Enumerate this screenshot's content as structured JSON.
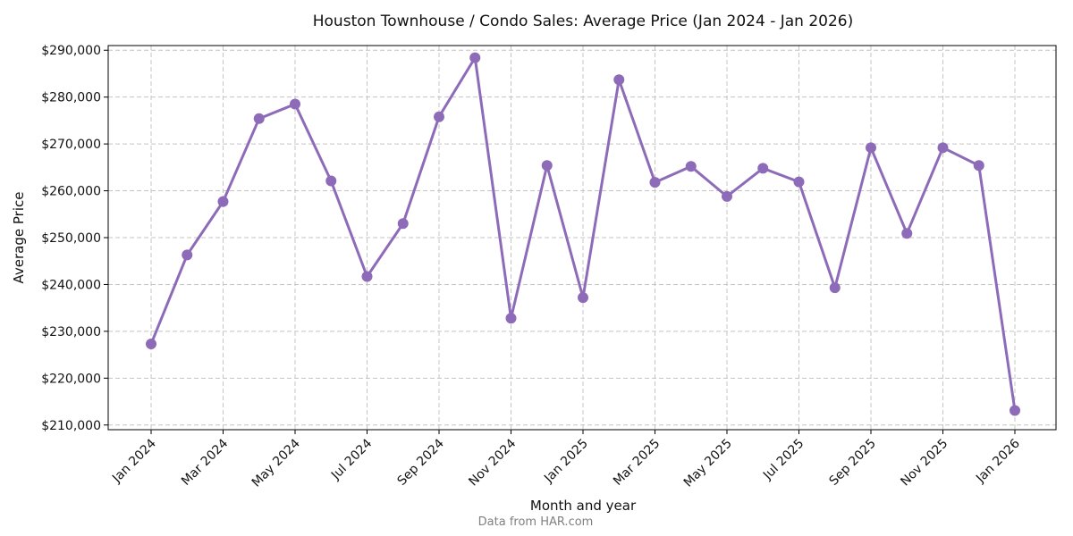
{
  "chart_data": {
    "type": "line",
    "title": "Houston Townhouse / Condo Sales: Average Price (Jan 2024 - Jan 2026)",
    "xlabel": "Month and year",
    "ylabel": "Average Price",
    "source": "Data from HAR.com",
    "ylim": [
      209000,
      291000
    ],
    "grid": true,
    "y_ticks": [
      210000,
      220000,
      230000,
      240000,
      250000,
      260000,
      270000,
      280000,
      290000
    ],
    "y_tick_labels": [
      "$210,000",
      "$220,000",
      "$230,000",
      "$240,000",
      "$250,000",
      "$260,000",
      "$270,000",
      "$280,000",
      "$290,000"
    ],
    "x_tick_indices": [
      0,
      2,
      4,
      6,
      8,
      10,
      12,
      14,
      16,
      18,
      20,
      22,
      24
    ],
    "x_tick_labels": [
      "Jan 2024",
      "Mar 2024",
      "May 2024",
      "Jul 2024",
      "Sep 2024",
      "Nov 2024",
      "Jan 2025",
      "Mar 2025",
      "May 2025",
      "Jul 2025",
      "Sep 2025",
      "Nov 2025",
      "Jan 2026"
    ],
    "categories": [
      "Jan 2024",
      "Feb 2024",
      "Mar 2024",
      "Apr 2024",
      "May 2024",
      "Jun 2024",
      "Jul 2024",
      "Aug 2024",
      "Sep 2024",
      "Oct 2024",
      "Nov 2024",
      "Dec 2024",
      "Jan 2025",
      "Feb 2025",
      "Mar 2025",
      "Apr 2025",
      "May 2025",
      "Jun 2025",
      "Jul 2025",
      "Aug 2025",
      "Sep 2025",
      "Oct 2025",
      "Nov 2025",
      "Dec 2025",
      "Jan 2026"
    ],
    "series": [
      {
        "name": "Average Price",
        "color": "#8e6bb8",
        "values": [
          227300,
          246300,
          257700,
          275400,
          278500,
          262100,
          241700,
          253000,
          275800,
          288400,
          232800,
          265400,
          237200,
          283700,
          261800,
          265200,
          258800,
          264800,
          261900,
          239300,
          269200,
          250900,
          269200,
          265400,
          213100
        ]
      }
    ]
  }
}
